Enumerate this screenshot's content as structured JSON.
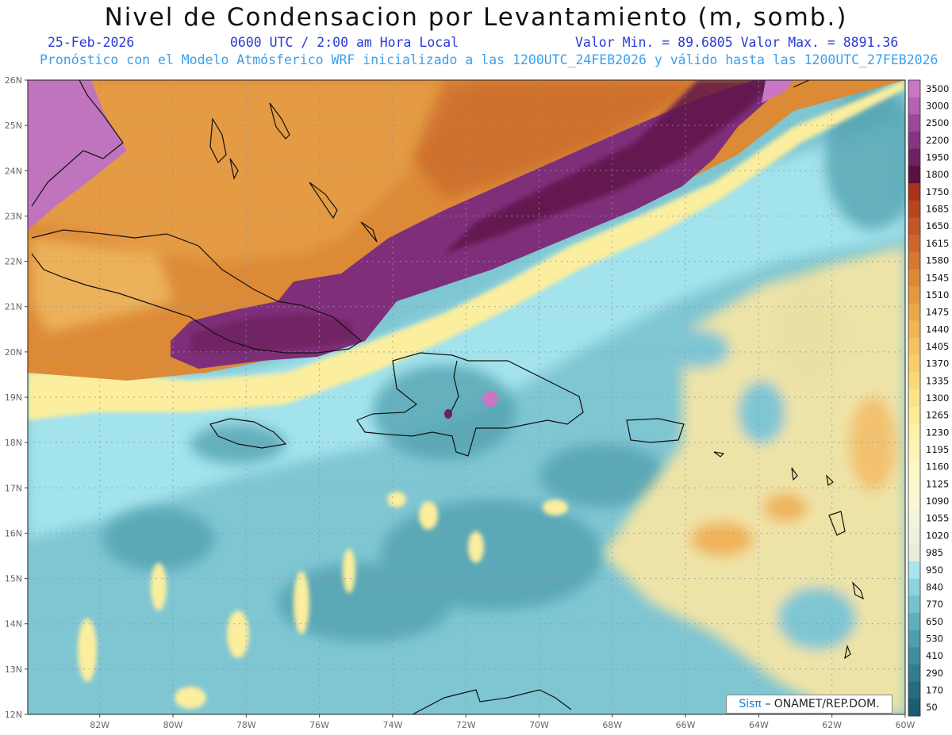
{
  "header": {
    "title": "Nivel de Condensacion por Levantamiento (m, somb.)",
    "date": "25-Feb-2026",
    "time": "0600 UTC / 2:00 am Hora Local",
    "range": "Valor Min. = 89.6805  Valor Max. = 8891.36",
    "model_info": "Pronóstico con el Modelo Atmósferico WRF inicializado a las 1200UTC_24FEB2026 y válido hasta las  1200UTC_27FEB2026"
  },
  "axes": {
    "lat_labels": [
      "26N",
      "25N",
      "24N",
      "23N",
      "22N",
      "21N",
      "20N",
      "19N",
      "18N",
      "17N",
      "16N",
      "15N",
      "14N",
      "13N",
      "12N"
    ],
    "lon_labels": [
      "82W",
      "80W",
      "78W",
      "76W",
      "74W",
      "72W",
      "70W",
      "68W",
      "66W",
      "64W",
      "62W",
      "60W"
    ]
  },
  "colorbar": {
    "labels": [
      "3500",
      "3000",
      "2500",
      "2200",
      "1950",
      "1800",
      "1750",
      "1685",
      "1650",
      "1615",
      "1580",
      "1545",
      "1510",
      "1475",
      "1440",
      "1405",
      "1370",
      "1335",
      "1300",
      "1265",
      "1230",
      "1195",
      "1160",
      "1125",
      "1090",
      "1055",
      "1020",
      "985",
      "950",
      "840",
      "770",
      "650",
      "530",
      "410",
      "290",
      "170",
      "50"
    ],
    "colors": [
      "#c977c4",
      "#b561b3",
      "#9c479c",
      "#85357f",
      "#6e2160",
      "#5a1040",
      "#a8321a",
      "#b7451f",
      "#c35624",
      "#cd6729",
      "#d6782f",
      "#de8936",
      "#e5993e",
      "#eba847",
      "#f0b652",
      "#f4c35e",
      "#f7cf6a",
      "#f9da78",
      "#fbe387",
      "#fceb97",
      "#fdf1a7",
      "#fdf5b6",
      "#fdf7c4",
      "#fbf8cf",
      "#f8f7d8",
      "#f4f4dd",
      "#eef1de",
      "#e7edda",
      "#a6e6ec",
      "#8ad4dd",
      "#74c2cd",
      "#5fb0bd",
      "#4e9fae",
      "#3f8e9f",
      "#327d90",
      "#266c80",
      "#1c5c71"
    ]
  },
  "credit": {
    "brand": "Sisπ",
    "text": "–  ONAMET/REP.DOM."
  }
}
